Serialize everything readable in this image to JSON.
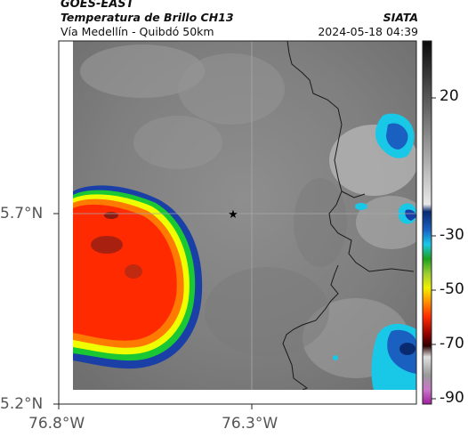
{
  "header": {
    "satellite": "GOES-EAST",
    "product": "Temperatura de Brillo CH13",
    "region": "Vía Medellín - Quibdó 50km",
    "organization": "SIATA",
    "datetime": "2024-05-18 04:39"
  },
  "axes": {
    "lat_ticks": [
      "5.7°N",
      "5.2°N"
    ],
    "lon_ticks": [
      "76.8°W",
      "76.3°W"
    ]
  },
  "colorbar": {
    "ticks": [
      "20",
      "-30",
      "-50",
      "-70",
      "-90"
    ],
    "scale_colors": [
      "#0a0a0a",
      "#e8e8e8",
      "#0a3a8a",
      "#19c8e6",
      "#1ea01e",
      "#f0f000",
      "#ff3a00",
      "#400000",
      "#a0a0a0",
      "#c040c0"
    ]
  },
  "map": {
    "marker": "star",
    "colors": {
      "cloud_background": "#8a8a8a",
      "storm_core": "#ff2a00",
      "storm_edge_yellow": "#f0ff00",
      "storm_edge_green": "#19c832",
      "storm_edge_blue": "#1a3fa6",
      "cold_patch": "#1e88d8"
    }
  }
}
